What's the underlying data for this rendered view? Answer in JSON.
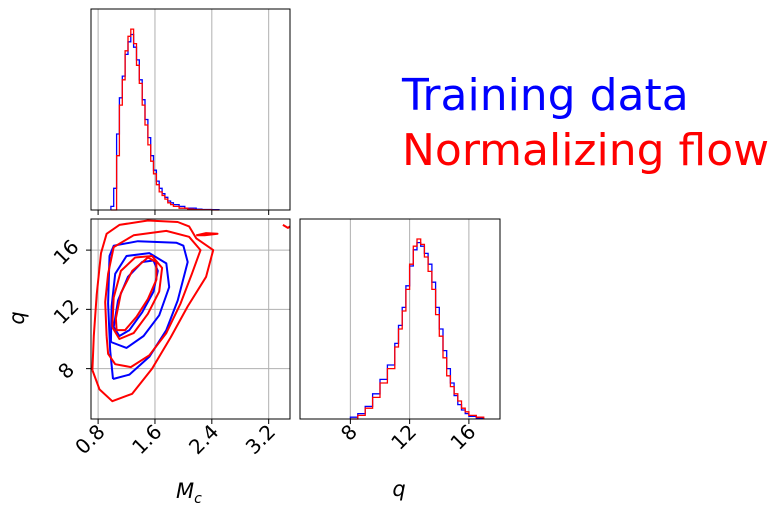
{
  "chart_data": [
    {
      "type": "histogram",
      "panel": "Mc-marginal",
      "xlim": [
        0.7,
        3.5
      ],
      "bins": [
        0.98,
        1.02,
        1.06,
        1.1,
        1.14,
        1.18,
        1.22,
        1.26,
        1.3,
        1.34,
        1.38,
        1.42,
        1.46,
        1.5,
        1.54,
        1.58,
        1.62,
        1.66,
        1.7,
        1.74,
        1.78,
        1.82,
        1.86,
        1.9,
        1.94,
        1.98,
        2.02,
        2.06,
        2.1,
        2.14,
        2.18,
        2.22,
        2.26,
        2.3,
        2.4,
        2.5
      ],
      "series": [
        {
          "name": "Training data",
          "color": "#0000ff",
          "values": [
            0.02,
            0.12,
            0.42,
            0.62,
            0.74,
            0.86,
            0.93,
            0.97,
            0.9,
            0.83,
            0.72,
            0.61,
            0.5,
            0.4,
            0.3,
            0.22,
            0.16,
            0.12,
            0.09,
            0.07,
            0.05,
            0.04,
            0.03,
            0.03,
            0.02,
            0.02,
            0.01,
            0.01,
            0.01,
            0.01,
            0.005,
            0.005,
            0.003,
            0.003,
            0.002
          ]
        },
        {
          "name": "Normalizing flow",
          "color": "#ff0000",
          "values": [
            0.0,
            0.0,
            0.3,
            0.58,
            0.72,
            0.88,
            0.96,
            1.0,
            0.92,
            0.8,
            0.7,
            0.58,
            0.47,
            0.36,
            0.27,
            0.2,
            0.14,
            0.1,
            0.08,
            0.06,
            0.04,
            0.03,
            0.02,
            0.02,
            0.01,
            0.01,
            0.01,
            0.005,
            0.005,
            0.003,
            0.002,
            0.002,
            0.001,
            0.001,
            0.0
          ]
        }
      ]
    },
    {
      "type": "contour",
      "panel": "Mc-q-joint",
      "xlim": [
        0.7,
        3.5
      ],
      "ylim": [
        4.6,
        18.1
      ],
      "xticks": [
        "0.8",
        "1.6",
        "2.4",
        "3.2"
      ],
      "yticks": [
        "8",
        "12",
        "16"
      ],
      "xtick_values": [
        0.8,
        1.6,
        2.4,
        3.2
      ],
      "ytick_values": [
        8,
        12,
        16
      ],
      "xlabel_main": "M",
      "xlabel_sub": "c",
      "ylabel": "q",
      "grid": true,
      "series": [
        {
          "name": "Training data",
          "color": "#0000ff",
          "levels": [
            [
              [
                1.02,
                10.8
              ],
              [
                1.08,
                12.6
              ],
              [
                1.22,
                14.2
              ],
              [
                1.42,
                15.2
              ],
              [
                1.58,
                15.3
              ],
              [
                1.64,
                14.6
              ],
              [
                1.58,
                13.2
              ],
              [
                1.42,
                11.8
              ],
              [
                1.24,
                10.6
              ],
              [
                1.1,
                10.2
              ],
              [
                1.02,
                10.8
              ]
            ],
            [
              [
                0.98,
                9.8
              ],
              [
                0.99,
                12.2
              ],
              [
                1.04,
                14.4
              ],
              [
                1.2,
                15.6
              ],
              [
                1.52,
                15.8
              ],
              [
                1.76,
                15.1
              ],
              [
                1.8,
                13.5
              ],
              [
                1.66,
                11.6
              ],
              [
                1.44,
                10.2
              ],
              [
                1.2,
                9.4
              ],
              [
                0.98,
                9.8
              ]
            ],
            [
              [
                1.01,
                7.3
              ],
              [
                0.97,
                9.2
              ],
              [
                0.94,
                12.4
              ],
              [
                0.96,
                15.6
              ],
              [
                1.02,
                16.3
              ],
              [
                1.36,
                16.6
              ],
              [
                1.9,
                16.5
              ],
              [
                2.0,
                16.3
              ],
              [
                2.06,
                15.2
              ],
              [
                1.92,
                12.6
              ],
              [
                1.76,
                10.6
              ],
              [
                1.52,
                8.8
              ],
              [
                1.24,
                7.6
              ],
              [
                1.01,
                7.3
              ]
            ]
          ]
        },
        {
          "name": "Normalizing flow",
          "color": "#ff0000",
          "levels": [
            [
              [
                1.05,
                11.4
              ],
              [
                1.12,
                13.1
              ],
              [
                1.28,
                14.6
              ],
              [
                1.5,
                15.5
              ],
              [
                1.62,
                15.2
              ],
              [
                1.62,
                14.0
              ],
              [
                1.5,
                12.7
              ],
              [
                1.34,
                11.5
              ],
              [
                1.18,
                10.6
              ],
              [
                1.06,
                10.6
              ],
              [
                1.05,
                11.4
              ]
            ],
            [
              [
                1.0,
                10.8
              ],
              [
                1.02,
                12.8
              ],
              [
                1.12,
                14.6
              ],
              [
                1.32,
                15.5
              ],
              [
                1.56,
                15.6
              ],
              [
                1.7,
                14.8
              ],
              [
                1.66,
                13.2
              ],
              [
                1.5,
                11.7
              ],
              [
                1.3,
                10.4
              ],
              [
                1.1,
                10.0
              ],
              [
                1.0,
                10.8
              ]
            ],
            [
              [
                0.92,
                10.2
              ],
              [
                0.9,
                12.5
              ],
              [
                0.94,
                14.4
              ],
              [
                1.02,
                16.2
              ],
              [
                1.3,
                17.0
              ],
              [
                1.76,
                17.3
              ],
              [
                2.08,
                16.9
              ],
              [
                2.24,
                16.0
              ],
              [
                2.12,
                14.4
              ],
              [
                1.96,
                12.4
              ],
              [
                1.76,
                10.4
              ],
              [
                1.52,
                8.9
              ],
              [
                1.26,
                8.1
              ],
              [
                1.04,
                8.3
              ],
              [
                0.94,
                9.0
              ],
              [
                0.92,
                10.2
              ]
            ],
            [
              [
                0.72,
                7.9
              ],
              [
                0.74,
                10.2
              ],
              [
                0.78,
                13.0
              ],
              [
                0.84,
                15.8
              ],
              [
                0.92,
                17.1
              ],
              [
                1.1,
                17.7
              ],
              [
                1.5,
                18.0
              ],
              [
                1.92,
                17.9
              ],
              [
                2.08,
                17.6
              ],
              [
                2.18,
                16.8
              ],
              [
                2.42,
                16.0
              ],
              [
                2.32,
                14.2
              ],
              [
                2.06,
                12.2
              ],
              [
                1.82,
                10.1
              ],
              [
                1.56,
                8.0
              ],
              [
                1.28,
                6.3
              ],
              [
                1.0,
                5.8
              ],
              [
                0.82,
                6.6
              ],
              [
                0.72,
                7.9
              ]
            ],
            [
              [
                2.18,
                17.0
              ],
              [
                2.32,
                17.15
              ],
              [
                2.48,
                17.1
              ],
              [
                2.3,
                17.0
              ],
              [
                2.18,
                17.0
              ]
            ],
            [
              [
                3.4,
                17.7
              ],
              [
                3.47,
                17.5
              ],
              [
                3.5,
                17.6
              ]
            ]
          ]
        }
      ]
    },
    {
      "type": "histogram",
      "panel": "q-marginal",
      "xlim": [
        4.6,
        18.1
      ],
      "xticks": [
        "8",
        "12",
        "16"
      ],
      "xtick_values": [
        8,
        12,
        16
      ],
      "xlabel": "q",
      "grid": true,
      "bins": [
        8.0,
        8.5,
        9.0,
        9.5,
        10.0,
        10.5,
        11.0,
        11.25,
        11.5,
        11.75,
        12.0,
        12.25,
        12.5,
        12.75,
        13.0,
        13.25,
        13.5,
        13.75,
        14.0,
        14.25,
        14.5,
        14.75,
        15.0,
        15.25,
        15.5,
        15.75,
        16.0,
        16.5,
        17.0
      ],
      "series": [
        {
          "name": "Training data",
          "color": "#0000ff",
          "values": [
            0.01,
            0.03,
            0.07,
            0.14,
            0.22,
            0.3,
            0.42,
            0.52,
            0.62,
            0.74,
            0.85,
            0.94,
            0.98,
            0.96,
            0.92,
            0.86,
            0.76,
            0.62,
            0.5,
            0.38,
            0.28,
            0.2,
            0.13,
            0.08,
            0.05,
            0.03,
            0.015,
            0.005
          ]
        },
        {
          "name": "Normalizing flow",
          "color": "#ff0000",
          "values": [
            0.0,
            0.02,
            0.06,
            0.12,
            0.2,
            0.28,
            0.4,
            0.5,
            0.6,
            0.72,
            0.86,
            0.96,
            1.0,
            0.97,
            0.9,
            0.82,
            0.72,
            0.58,
            0.46,
            0.34,
            0.24,
            0.18,
            0.14,
            0.1,
            0.06,
            0.04,
            0.02,
            0.01
          ]
        }
      ]
    }
  ],
  "legend": [
    {
      "label": "Training data",
      "color": "#0000ff"
    },
    {
      "label": "Normalizing flow",
      "color": "#ff0000"
    }
  ]
}
